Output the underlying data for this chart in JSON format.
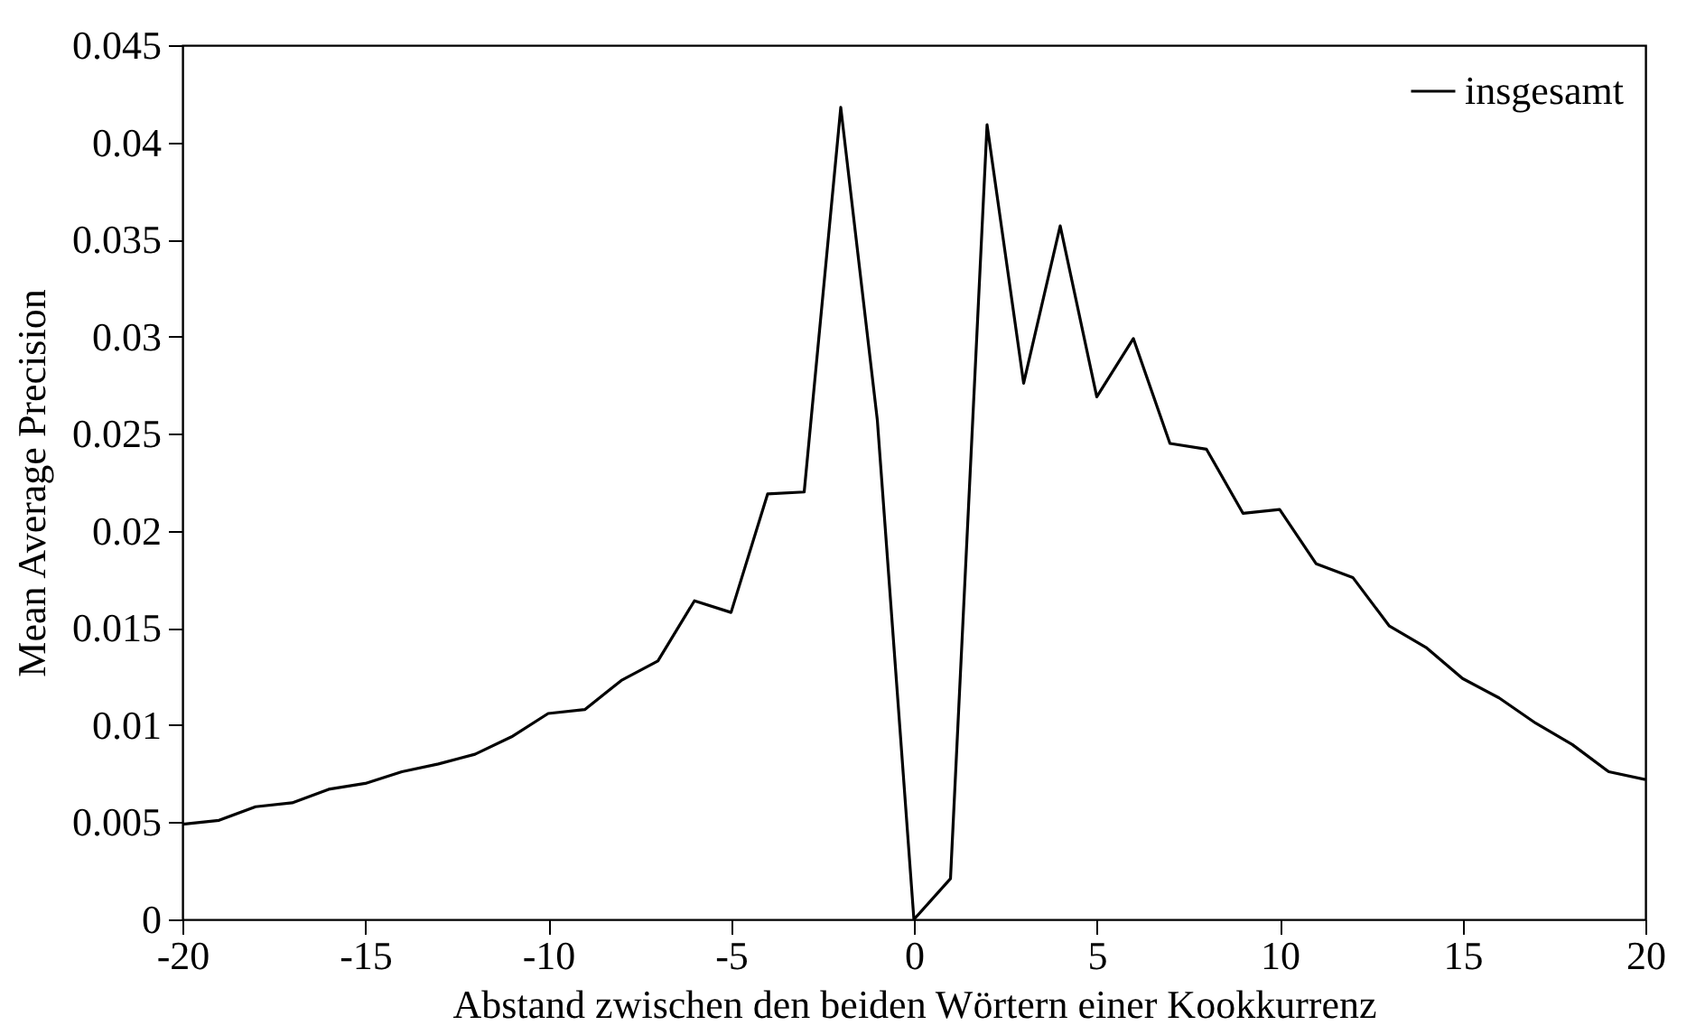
{
  "chart_data": {
    "type": "line",
    "xlabel": "Abstand zwischen den beiden Wörtern einer Kookkurrenz",
    "ylabel": "Mean Average Precision",
    "x": [
      -20,
      -19,
      -18,
      -17,
      -16,
      -15,
      -14,
      -13,
      -12,
      -11,
      -10,
      -9,
      -8,
      -7,
      -6,
      -5,
      -4,
      -3,
      -2,
      -1,
      0,
      1,
      2,
      3,
      4,
      5,
      6,
      7,
      8,
      9,
      10,
      11,
      12,
      13,
      14,
      15,
      16,
      17,
      18,
      19,
      20
    ],
    "series": [
      {
        "name": "insgesamt",
        "color": "#000000",
        "values": [
          0.0049,
          0.0051,
          0.0058,
          0.006,
          0.0067,
          0.007,
          0.0076,
          0.008,
          0.0085,
          0.0094,
          0.0106,
          0.0108,
          0.0123,
          0.0133,
          0.0164,
          0.0158,
          0.0219,
          0.022,
          0.0418,
          0.0257,
          0,
          0.0021,
          0.0409,
          0.0276,
          0.0357,
          0.0269,
          0.0299,
          0.0245,
          0.0242,
          0.0209,
          0.0211,
          0.0183,
          0.0176,
          0.0151,
          0.014,
          0.0124,
          0.0114,
          0.0101,
          0.009,
          0.0076,
          0.0072
        ]
      }
    ],
    "xlim": [
      -20,
      20
    ],
    "xticks": [
      -20,
      -15,
      -10,
      -5,
      0,
      5,
      10,
      15,
      20
    ],
    "ylim": [
      0,
      0.045
    ],
    "yticks": [
      0,
      0.005,
      0.01,
      0.015,
      0.02,
      0.025,
      0.03,
      0.035,
      0.04,
      0.045
    ],
    "grid": false,
    "legend": "top right",
    "marker": "none",
    "line_style": "solid"
  }
}
